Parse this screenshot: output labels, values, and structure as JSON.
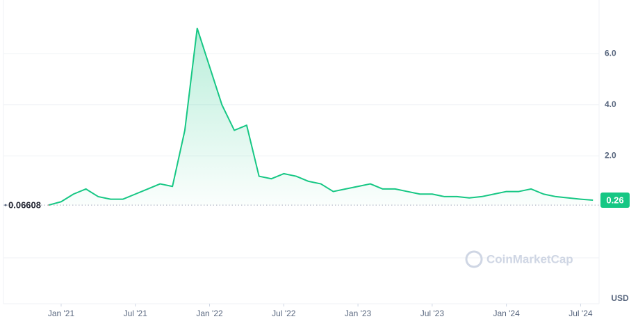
{
  "chart_data": {
    "type": "line",
    "x": [
      "2020-12",
      "2021-01",
      "2021-02",
      "2021-03",
      "2021-04",
      "2021-05",
      "2021-06",
      "2021-07",
      "2021-08",
      "2021-09",
      "2021-10",
      "2021-11",
      "2021-12",
      "2022-01",
      "2022-02",
      "2022-03",
      "2022-04",
      "2022-05",
      "2022-06",
      "2022-07",
      "2022-08",
      "2022-09",
      "2022-10",
      "2022-11",
      "2022-12",
      "2023-01",
      "2023-02",
      "2023-03",
      "2023-04",
      "2023-05",
      "2023-06",
      "2023-07",
      "2023-08",
      "2023-09",
      "2023-10",
      "2023-11",
      "2023-12",
      "2024-01",
      "2024-02",
      "2024-03",
      "2024-04",
      "2024-05",
      "2024-06",
      "2024-07",
      "2024-08"
    ],
    "series": [
      {
        "color": "#16c784",
        "below_color": "#ea3943",
        "values": [
          0.07,
          0.2,
          0.5,
          0.7,
          0.4,
          0.3,
          0.3,
          0.5,
          0.7,
          0.9,
          0.8,
          3.0,
          7.0,
          5.5,
          4.0,
          3.0,
          3.2,
          1.2,
          1.1,
          1.3,
          1.2,
          1.0,
          0.9,
          0.6,
          0.7,
          0.8,
          0.9,
          0.7,
          0.7,
          0.6,
          0.5,
          0.5,
          0.4,
          0.4,
          0.35,
          0.4,
          0.5,
          0.6,
          0.6,
          0.7,
          0.5,
          0.4,
          0.35,
          0.3,
          0.26
        ]
      }
    ],
    "baseline": 0.06608,
    "xlim": [
      "2020-08",
      "2024-09"
    ],
    "xticks": [
      {
        "value": "2021-01",
        "label": "Jan '21"
      },
      {
        "value": "2021-07",
        "label": "Jul '21"
      },
      {
        "value": "2022-01",
        "label": "Jan '22"
      },
      {
        "value": "2022-07",
        "label": "Jul '22"
      },
      {
        "value": "2023-01",
        "label": "Jan '23"
      },
      {
        "value": "2023-07",
        "label": "Jul '23"
      },
      {
        "value": "2024-01",
        "label": "Jan '24"
      },
      {
        "value": "2024-07",
        "label": "Jul '24"
      }
    ],
    "ylim": [
      -2,
      8
    ],
    "yticks": [
      {
        "value": 2,
        "label": "2.0"
      },
      {
        "value": 4,
        "label": "4.0"
      },
      {
        "value": 6,
        "label": "6.0"
      }
    ],
    "y_label": "USD",
    "watermark": "CoinMarketCap",
    "grid": true
  }
}
